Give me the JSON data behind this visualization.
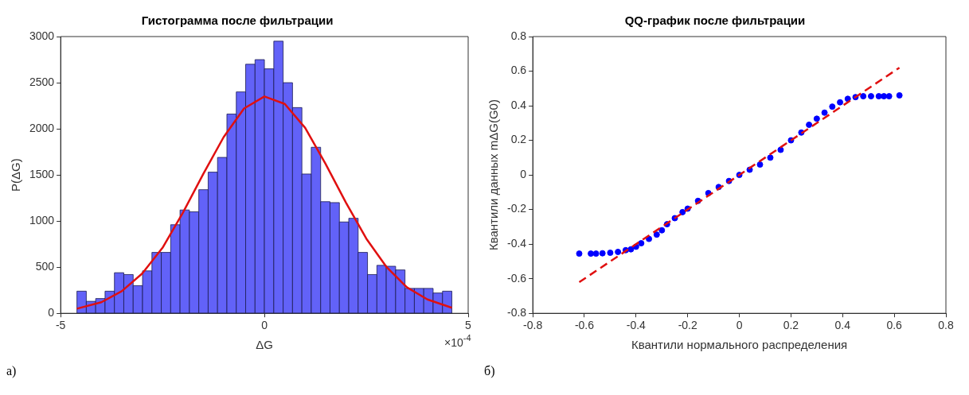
{
  "chart_data": [
    {
      "type": "histogram",
      "title": "Гистограмма после фильтрации",
      "xlabel": "ΔG",
      "ylabel": "P(ΔG)",
      "bins": [
        -4.6,
        -4.37,
        -4.14,
        -3.91,
        -3.68,
        -3.45,
        -3.22,
        -2.99,
        -2.76,
        -2.53,
        -2.3,
        -2.07,
        -1.84,
        -1.61,
        -1.38,
        -1.15,
        -0.92,
        -0.69,
        -0.46,
        -0.23,
        0,
        0.23,
        0.46,
        0.69,
        0.92,
        1.15,
        1.38,
        1.61,
        1.84,
        2.07,
        2.3,
        2.53,
        2.76,
        2.99,
        3.22,
        3.45,
        3.68,
        3.91,
        4.14,
        4.37,
        4.6
      ],
      "values": [
        240,
        130,
        160,
        240,
        440,
        420,
        300,
        460,
        660,
        660,
        960,
        1120,
        1100,
        1340,
        1530,
        1690,
        2160,
        2400,
        2700,
        2750,
        2650,
        2950,
        2500,
        2230,
        1510,
        1800,
        1210,
        1200,
        990,
        1030,
        660,
        420,
        520,
        510,
        470,
        270,
        270,
        270,
        220,
        240
      ],
      "color": "#6262f8",
      "series": [
        {
          "type": "line",
          "color": "#e01010",
          "x": [
            -4.6,
            -4,
            -3.5,
            -3,
            -2.5,
            -2,
            -1.5,
            -1,
            -0.5,
            0,
            0.5,
            1,
            1.5,
            2,
            2.5,
            3,
            3.5,
            4,
            4.6
          ],
          "values": [
            50,
            120,
            240,
            430,
            710,
            1090,
            1510,
            1910,
            2220,
            2350,
            2270,
            2010,
            1620,
            1200,
            810,
            500,
            280,
            150,
            60
          ]
        }
      ],
      "xlim": [
        -5,
        5
      ],
      "xticks": [
        -5,
        0,
        5
      ],
      "ylim": [
        0,
        3000
      ],
      "yticks": [
        0,
        500,
        1000,
        1500,
        2000,
        2500,
        3000
      ],
      "annotations": [
        "а)",
        "×10$^{-4}$"
      ]
    },
    {
      "type": "scatter",
      "title": "QQ-график после фильтрации",
      "xlabel": "Квантили нормального распределения",
      "ylabel": "Квантили данных mΔG(G0)",
      "series": [
        {
          "type": "scatter",
          "color": "#0000ff",
          "marker": "circle",
          "x": [
            -0.62,
            -0.575,
            -0.555,
            -0.53,
            -0.5,
            -0.47,
            -0.44,
            -0.42,
            -0.4,
            -0.38,
            -0.35,
            -0.32,
            -0.3,
            -0.28,
            -0.25,
            -0.22,
            -0.2,
            -0.16,
            -0.12,
            -0.08,
            -0.04,
            0,
            0.04,
            0.08,
            0.12,
            0.16,
            0.2,
            0.24,
            0.27,
            0.3,
            0.33,
            0.36,
            0.39,
            0.42,
            0.45,
            0.48,
            0.51,
            0.54,
            0.56,
            0.58,
            0.62
          ],
          "values": [
            -0.455,
            -0.455,
            -0.455,
            -0.453,
            -0.45,
            -0.445,
            -0.435,
            -0.43,
            -0.415,
            -0.395,
            -0.37,
            -0.345,
            -0.32,
            -0.285,
            -0.25,
            -0.215,
            -0.195,
            -0.15,
            -0.105,
            -0.07,
            -0.035,
            0,
            0.03,
            0.06,
            0.1,
            0.145,
            0.2,
            0.245,
            0.29,
            0.325,
            0.36,
            0.395,
            0.42,
            0.44,
            0.45,
            0.455,
            0.455,
            0.455,
            0.455,
            0.455,
            0.46
          ]
        },
        {
          "type": "line",
          "color": "#e01010",
          "line_style": "dashed",
          "x": [
            -0.62,
            0.62
          ],
          "values": [
            -0.62,
            0.62
          ]
        }
      ],
      "xlim": [
        -0.8,
        0.8
      ],
      "xticks": [
        -0.8,
        -0.6,
        -0.4,
        -0.2,
        0,
        0.2,
        0.4,
        0.6,
        0.8
      ],
      "ylim": [
        -0.8,
        0.8
      ],
      "yticks": [
        -0.8,
        -0.6,
        -0.4,
        -0.2,
        0,
        0.2,
        0.4,
        0.6,
        0.8
      ],
      "annotations": [
        "б)"
      ]
    }
  ]
}
